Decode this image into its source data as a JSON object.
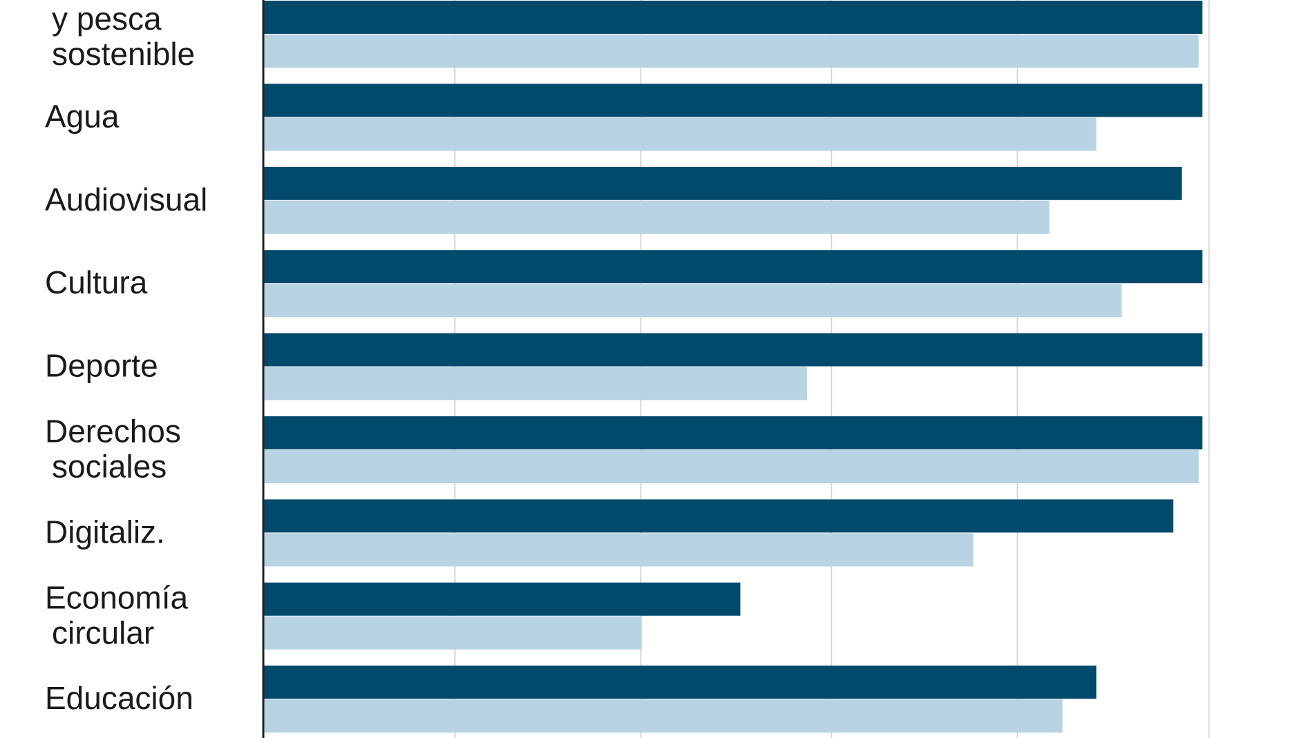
{
  "chart_data": {
    "type": "bar",
    "orientation": "horizontal",
    "categories": [
      [
        "y pesca",
        "sostenible"
      ],
      [
        "Agua"
      ],
      [
        "Audiovisual"
      ],
      [
        "Cultura"
      ],
      [
        "Deporte"
      ],
      [
        "Derechos",
        "sociales"
      ],
      [
        "Digitaliz."
      ],
      [
        "Economía",
        "circular"
      ],
      [
        "Educación"
      ]
    ],
    "series": [
      {
        "color": "#024a6b",
        "values": [
          100,
          100,
          97.8,
          100,
          100,
          100,
          96.9,
          50.8,
          88.7
        ]
      },
      {
        "color": "#b8d3e3",
        "values": [
          99.6,
          88.7,
          83.7,
          91.4,
          57.9,
          99.6,
          75.6,
          40.3,
          85.1
        ]
      }
    ],
    "xlim": [
      0,
      100
    ],
    "xticks": [
      0,
      20,
      40,
      60,
      80,
      100
    ],
    "grid": true,
    "gridlines": [
      20.4,
      40.2,
      60.5,
      80.3,
      100.7
    ]
  }
}
